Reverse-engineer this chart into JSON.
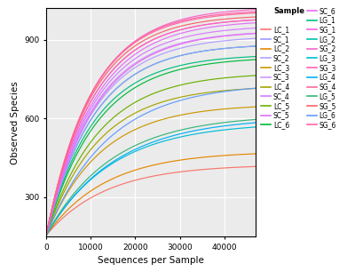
{
  "xlabel": "Sequences per Sample",
  "ylabel": "Observed Species",
  "bg_color": "#EBEBEB",
  "grid_color": "white",
  "x_max": 47000,
  "y_min": 150,
  "y_max": 1020,
  "x_ticks": [
    0,
    10000,
    20000,
    30000,
    40000
  ],
  "y_ticks": [
    300,
    600,
    900
  ],
  "legend_title": "Sample",
  "curves": [
    {
      "label": "LC_1",
      "color": "#F8766D",
      "a": 270,
      "b": 7.5e-05,
      "y0": 155
    },
    {
      "label": "LC_2",
      "color": "#E58700",
      "a": 320,
      "b": 7.5e-05,
      "y0": 155
    },
    {
      "label": "LC_3",
      "color": "#C99800",
      "a": 500,
      "b": 8.2e-05,
      "y0": 155
    },
    {
      "label": "LC_4",
      "color": "#A3A500",
      "a": 570,
      "b": 8.5e-05,
      "y0": 155
    },
    {
      "label": "LC_5",
      "color": "#6BB100",
      "a": 620,
      "b": 8.5e-05,
      "y0": 155
    },
    {
      "label": "LC_6",
      "color": "#00BA38",
      "a": 680,
      "b": 8.8e-05,
      "y0": 155
    },
    {
      "label": "LG_1",
      "color": "#00BF7D",
      "a": 690,
      "b": 9.2e-05,
      "y0": 155
    },
    {
      "label": "LG_2",
      "color": "#00C0AF",
      "a": 730,
      "b": 9.2e-05,
      "y0": 155
    },
    {
      "label": "LG_3",
      "color": "#00BCD8",
      "a": 430,
      "b": 6.8e-05,
      "y0": 155
    },
    {
      "label": "LG_4",
      "color": "#00B0F6",
      "a": 450,
      "b": 6.5e-05,
      "y0": 155
    },
    {
      "label": "LG_5",
      "color": "#35B779",
      "a": 460,
      "b": 6.8e-05,
      "y0": 155
    },
    {
      "label": "LG_6",
      "color": "#619CFF",
      "a": 580,
      "b": 7.2e-05,
      "y0": 155
    },
    {
      "label": "SC_1",
      "color": "#9B9CFF",
      "a": 730,
      "b": 9.2e-05,
      "y0": 155
    },
    {
      "label": "SC_2",
      "color": "#B09EFF",
      "a": 760,
      "b": 9.2e-05,
      "y0": 155
    },
    {
      "label": "SC_3",
      "color": "#CD96FF",
      "a": 780,
      "b": 9.2e-05,
      "y0": 155
    },
    {
      "label": "SC_4",
      "color": "#D67BFF",
      "a": 800,
      "b": 9.2e-05,
      "y0": 155
    },
    {
      "label": "SC_5",
      "color": "#DF70F8",
      "a": 820,
      "b": 9.2e-05,
      "y0": 155
    },
    {
      "label": "SC_6",
      "color": "#E76BF3",
      "a": 780,
      "b": 9e-05,
      "y0": 155
    },
    {
      "label": "SG_1",
      "color": "#F564E3",
      "a": 830,
      "b": 9.5e-05,
      "y0": 155
    },
    {
      "label": "SG_2",
      "color": "#F766C9",
      "a": 870,
      "b": 9.5e-05,
      "y0": 155
    },
    {
      "label": "SG_3",
      "color": "#FF62B5",
      "a": 830,
      "b": 9.5e-05,
      "y0": 155
    },
    {
      "label": "SG_4",
      "color": "#FF6B9D",
      "a": 855,
      "b": 9.8e-05,
      "y0": 155
    },
    {
      "label": "SG_5",
      "color": "#FA6266",
      "a": 840,
      "b": 9.8e-05,
      "y0": 155
    },
    {
      "label": "SG_6",
      "color": "#FF63A5",
      "a": 860,
      "b": 9.8e-05,
      "y0": 155
    }
  ],
  "legend_left": [
    {
      "label": "LC_1",
      "color": "#F8766D"
    },
    {
      "label": "LC_2",
      "color": "#E58700"
    },
    {
      "label": "LC_3",
      "color": "#C99800"
    },
    {
      "label": "LC_4",
      "color": "#A3A500"
    },
    {
      "label": "LC_5",
      "color": "#6BB100"
    },
    {
      "label": "LC_6",
      "color": "#00BA38"
    },
    {
      "label": "LG_1",
      "color": "#00BF7D"
    },
    {
      "label": "LG_2",
      "color": "#00C0AF"
    },
    {
      "label": "LG_3",
      "color": "#00BCD8"
    },
    {
      "label": "LG_4",
      "color": "#00B0F6"
    },
    {
      "label": "LG_5",
      "color": "#35B779"
    },
    {
      "label": "LG_6",
      "color": "#619CFF"
    }
  ],
  "legend_right": [
    {
      "label": "SC_1",
      "color": "#9B9CFF"
    },
    {
      "label": "SC_2",
      "color": "#B09EFF"
    },
    {
      "label": "SC_3",
      "color": "#CD96FF"
    },
    {
      "label": "SC_4",
      "color": "#D67BFF"
    },
    {
      "label": "SC_5",
      "color": "#DF70F8"
    },
    {
      "label": "SC_6",
      "color": "#E76BF3"
    },
    {
      "label": "SG_1",
      "color": "#F564E3"
    },
    {
      "label": "SG_2",
      "color": "#F766C9"
    },
    {
      "label": "SG_3",
      "color": "#FF62B5"
    },
    {
      "label": "SG_4",
      "color": "#FF6B9D"
    },
    {
      "label": "SG_5",
      "color": "#FA6266"
    },
    {
      "label": "SG_6",
      "color": "#FF63A5"
    }
  ]
}
